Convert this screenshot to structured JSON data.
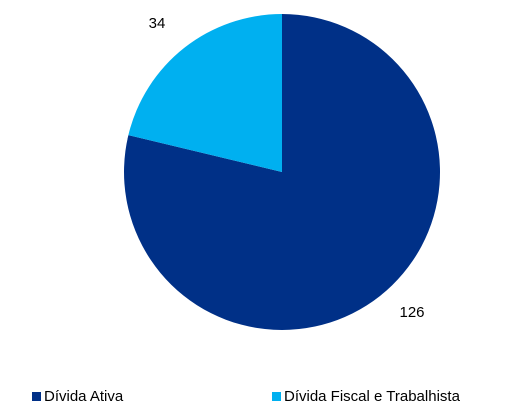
{
  "chart_data": {
    "type": "pie",
    "categories": [
      "Dívida Ativa",
      "Dívida Fiscal e Trabalhista"
    ],
    "values": [
      126,
      34
    ],
    "data_labels": [
      "126",
      "34"
    ],
    "colors": [
      "#003087",
      "#00b0f0"
    ],
    "start_angle_deg": 0,
    "direction": "clockwise",
    "legend_position": "bottom",
    "title": ""
  }
}
